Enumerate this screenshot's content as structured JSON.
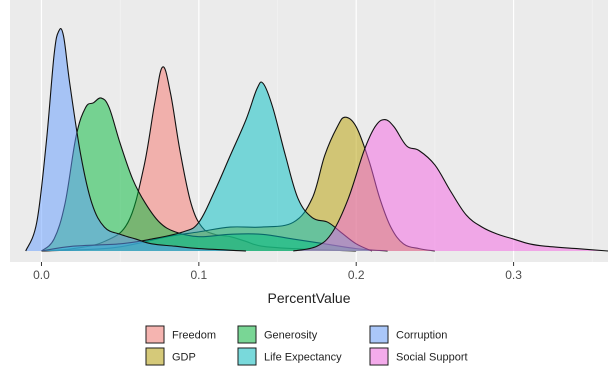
{
  "chart_data": {
    "type": "area",
    "chart_kind": "density",
    "xlabel": "PercentValue",
    "ylabel": "",
    "xlim": [
      -0.02,
      0.36
    ],
    "ylim": [
      0,
      1
    ],
    "x_ticks": [
      0.0,
      0.1,
      0.2,
      0.3
    ],
    "x_tick_labels": [
      "0.0",
      "0.1",
      "0.2",
      "0.3"
    ],
    "grid": true,
    "legend_position": "bottom",
    "series": [
      {
        "name": "Freedom",
        "color": "#F8766D",
        "points": [
          [
            0.0,
            0
          ],
          [
            0.02,
            0.01
          ],
          [
            0.04,
            0.04
          ],
          [
            0.055,
            0.12
          ],
          [
            0.065,
            0.35
          ],
          [
            0.072,
            0.62
          ],
          [
            0.077,
            0.77
          ],
          [
            0.082,
            0.66
          ],
          [
            0.088,
            0.42
          ],
          [
            0.095,
            0.2
          ],
          [
            0.102,
            0.1
          ],
          [
            0.11,
            0.07
          ],
          [
            0.12,
            0.06
          ],
          [
            0.13,
            0.04
          ],
          [
            0.14,
            0.02
          ],
          [
            0.16,
            0.01
          ],
          [
            0.2,
            0
          ]
        ]
      },
      {
        "name": "GDP",
        "color": "#B79F00",
        "points": [
          [
            0.0,
            0
          ],
          [
            0.04,
            0.01
          ],
          [
            0.06,
            0.03
          ],
          [
            0.08,
            0.06
          ],
          [
            0.1,
            0.08
          ],
          [
            0.12,
            0.1
          ],
          [
            0.14,
            0.1
          ],
          [
            0.16,
            0.12
          ],
          [
            0.172,
            0.22
          ],
          [
            0.18,
            0.4
          ],
          [
            0.188,
            0.52
          ],
          [
            0.193,
            0.56
          ],
          [
            0.2,
            0.52
          ],
          [
            0.208,
            0.38
          ],
          [
            0.215,
            0.22
          ],
          [
            0.222,
            0.1
          ],
          [
            0.23,
            0.03
          ],
          [
            0.24,
            0.01
          ],
          [
            0.25,
            0
          ]
        ]
      },
      {
        "name": "Generosity",
        "color": "#00BA38",
        "points": [
          [
            0.0,
            0
          ],
          [
            0.008,
            0.05
          ],
          [
            0.015,
            0.2
          ],
          [
            0.022,
            0.48
          ],
          [
            0.028,
            0.6
          ],
          [
            0.033,
            0.62
          ],
          [
            0.038,
            0.64
          ],
          [
            0.043,
            0.6
          ],
          [
            0.05,
            0.45
          ],
          [
            0.058,
            0.3
          ],
          [
            0.066,
            0.2
          ],
          [
            0.075,
            0.12
          ],
          [
            0.085,
            0.08
          ],
          [
            0.1,
            0.06
          ],
          [
            0.12,
            0.07
          ],
          [
            0.14,
            0.07
          ],
          [
            0.16,
            0.05
          ],
          [
            0.18,
            0.03
          ],
          [
            0.2,
            0.01
          ],
          [
            0.22,
            0
          ]
        ]
      },
      {
        "name": "Life Expectancy",
        "color": "#00BFC4",
        "points": [
          [
            0.0,
            0
          ],
          [
            0.02,
            0.02
          ],
          [
            0.05,
            0.03
          ],
          [
            0.07,
            0.05
          ],
          [
            0.09,
            0.08
          ],
          [
            0.1,
            0.12
          ],
          [
            0.11,
            0.25
          ],
          [
            0.12,
            0.4
          ],
          [
            0.13,
            0.55
          ],
          [
            0.137,
            0.68
          ],
          [
            0.141,
            0.7
          ],
          [
            0.147,
            0.6
          ],
          [
            0.155,
            0.4
          ],
          [
            0.163,
            0.22
          ],
          [
            0.172,
            0.14
          ],
          [
            0.182,
            0.12
          ],
          [
            0.19,
            0.08
          ],
          [
            0.2,
            0.03
          ],
          [
            0.21,
            0
          ]
        ]
      },
      {
        "name": "Corruption",
        "color": "#619CFF",
        "points": [
          [
            -0.01,
            0
          ],
          [
            -0.003,
            0.12
          ],
          [
            0.003,
            0.45
          ],
          [
            0.008,
            0.82
          ],
          [
            0.011,
            0.92
          ],
          [
            0.014,
            0.9
          ],
          [
            0.018,
            0.7
          ],
          [
            0.025,
            0.4
          ],
          [
            0.032,
            0.2
          ],
          [
            0.04,
            0.1
          ],
          [
            0.05,
            0.07
          ],
          [
            0.06,
            0.05
          ],
          [
            0.07,
            0.03
          ],
          [
            0.085,
            0.02
          ],
          [
            0.1,
            0.01
          ],
          [
            0.13,
            0
          ]
        ]
      },
      {
        "name": "Social Support",
        "color": "#F564E3",
        "points": [
          [
            0.16,
            0
          ],
          [
            0.175,
            0.02
          ],
          [
            0.185,
            0.08
          ],
          [
            0.195,
            0.22
          ],
          [
            0.205,
            0.42
          ],
          [
            0.212,
            0.52
          ],
          [
            0.218,
            0.55
          ],
          [
            0.224,
            0.52
          ],
          [
            0.232,
            0.44
          ],
          [
            0.24,
            0.42
          ],
          [
            0.25,
            0.36
          ],
          [
            0.26,
            0.25
          ],
          [
            0.27,
            0.15
          ],
          [
            0.28,
            0.1
          ],
          [
            0.29,
            0.07
          ],
          [
            0.3,
            0.05
          ],
          [
            0.31,
            0.03
          ],
          [
            0.32,
            0.02
          ],
          [
            0.34,
            0.01
          ],
          [
            0.36,
            0
          ]
        ]
      }
    ],
    "legend": {
      "columns": 3,
      "entries": [
        "Freedom",
        "GDP",
        "Generosity",
        "Life Expectancy",
        "Corruption",
        "Social Support"
      ]
    }
  }
}
